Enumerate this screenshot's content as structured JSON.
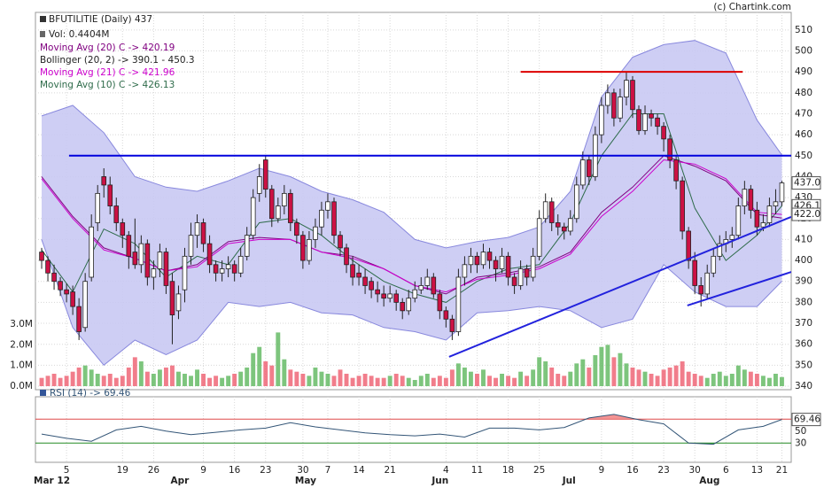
{
  "chart_data": {
    "type": "candlestick",
    "title": "BFUTILITIE (Daily) 437",
    "source": "(c) Chartink.com",
    "xlim": [
      -1,
      120.5
    ],
    "ylim": [
      340,
      518.4
    ],
    "yticks": [
      340,
      350,
      360,
      370,
      380,
      390,
      400,
      410,
      420,
      430,
      440,
      450,
      460,
      470,
      480,
      490,
      500,
      510
    ],
    "grid": true,
    "xticks": [
      {
        "value": 4,
        "label": "5"
      },
      {
        "value": 13,
        "label": "19"
      },
      {
        "value": 18,
        "label": "26"
      },
      {
        "value": 26,
        "label": "9"
      },
      {
        "value": 31,
        "label": "16"
      },
      {
        "value": 36,
        "label": "23"
      },
      {
        "value": 42,
        "label": "30"
      },
      {
        "value": 46,
        "label": "7"
      },
      {
        "value": 51,
        "label": "14"
      },
      {
        "value": 56,
        "label": "21"
      },
      {
        "value": 65,
        "label": "4"
      },
      {
        "value": 70,
        "label": "11"
      },
      {
        "value": 75,
        "label": "18"
      },
      {
        "value": 80,
        "label": "25"
      },
      {
        "value": 90,
        "label": "9"
      },
      {
        "value": 95,
        "label": "16"
      },
      {
        "value": 100,
        "label": "23"
      },
      {
        "value": 105,
        "label": "30"
      },
      {
        "value": 110,
        "label": "6"
      },
      {
        "value": 115,
        "label": "13"
      },
      {
        "value": 119,
        "label": "21"
      }
    ],
    "month_labels": [
      {
        "value": 0,
        "label": "Mar 12"
      },
      {
        "value": 22,
        "label": "Apr"
      },
      {
        "value": 42,
        "label": "May"
      },
      {
        "value": 64,
        "label": "Jun"
      },
      {
        "value": 85,
        "label": "Jul"
      },
      {
        "value": 107,
        "label": "Aug"
      }
    ],
    "up_color": "#ffffff",
    "down_color": "#cc1144",
    "ohlc": [
      [
        404,
        406,
        396,
        400
      ],
      [
        400,
        402,
        390,
        394
      ],
      [
        394,
        398,
        386,
        390
      ],
      [
        390,
        392,
        383,
        386
      ],
      [
        386,
        389,
        380,
        384
      ],
      [
        385,
        388,
        374,
        378
      ],
      [
        378,
        382,
        362,
        366
      ],
      [
        368,
        394,
        366,
        390
      ],
      [
        392,
        422,
        390,
        416
      ],
      [
        418,
        436,
        414,
        432
      ],
      [
        440,
        444,
        430,
        436
      ],
      [
        436,
        440,
        422,
        426
      ],
      [
        426,
        430,
        414,
        418
      ],
      [
        418,
        420,
        406,
        412
      ],
      [
        412,
        414,
        396,
        402
      ],
      [
        404,
        420,
        396,
        398
      ],
      [
        398,
        412,
        394,
        408
      ],
      [
        408,
        410,
        388,
        392
      ],
      [
        392,
        400,
        386,
        396
      ],
      [
        396,
        408,
        392,
        404
      ],
      [
        404,
        406,
        384,
        388
      ],
      [
        390,
        394,
        360,
        374
      ],
      [
        376,
        388,
        372,
        384
      ],
      [
        386,
        406,
        380,
        402
      ],
      [
        402,
        418,
        398,
        412
      ],
      [
        412,
        422,
        406,
        418
      ],
      [
        418,
        420,
        404,
        408
      ],
      [
        408,
        412,
        394,
        398
      ],
      [
        398,
        400,
        390,
        394
      ],
      [
        394,
        400,
        390,
        396
      ],
      [
        396,
        402,
        392,
        398
      ],
      [
        398,
        400,
        390,
        394
      ],
      [
        394,
        406,
        392,
        402
      ],
      [
        402,
        416,
        400,
        412
      ],
      [
        412,
        434,
        410,
        430
      ],
      [
        432,
        446,
        428,
        440
      ],
      [
        448,
        450,
        430,
        434
      ],
      [
        434,
        436,
        416,
        420
      ],
      [
        420,
        430,
        418,
        426
      ],
      [
        426,
        436,
        422,
        432
      ],
      [
        432,
        434,
        414,
        418
      ],
      [
        418,
        420,
        408,
        412
      ],
      [
        412,
        414,
        396,
        400
      ],
      [
        400,
        414,
        398,
        410
      ],
      [
        410,
        420,
        406,
        416
      ],
      [
        416,
        428,
        412,
        424
      ],
      [
        424,
        432,
        420,
        428
      ],
      [
        428,
        430,
        408,
        412
      ],
      [
        412,
        414,
        402,
        406
      ],
      [
        406,
        408,
        394,
        398
      ],
      [
        398,
        402,
        388,
        392
      ],
      [
        394,
        398,
        388,
        392
      ],
      [
        392,
        396,
        384,
        388
      ],
      [
        390,
        392,
        382,
        386
      ],
      [
        386,
        390,
        380,
        384
      ],
      [
        384,
        388,
        378,
        382
      ],
      [
        382,
        388,
        380,
        384
      ],
      [
        384,
        386,
        376,
        380
      ],
      [
        380,
        382,
        372,
        376
      ],
      [
        376,
        386,
        374,
        382
      ],
      [
        382,
        390,
        380,
        386
      ],
      [
        386,
        392,
        384,
        388
      ],
      [
        388,
        396,
        386,
        392
      ],
      [
        392,
        394,
        382,
        384
      ],
      [
        384,
        386,
        372,
        376
      ],
      [
        376,
        378,
        368,
        372
      ],
      [
        372,
        374,
        362,
        366
      ],
      [
        366,
        396,
        364,
        392
      ],
      [
        392,
        402,
        388,
        398
      ],
      [
        398,
        406,
        394,
        402
      ],
      [
        402,
        404,
        394,
        398
      ],
      [
        398,
        408,
        396,
        404
      ],
      [
        404,
        406,
        396,
        400
      ],
      [
        400,
        402,
        390,
        396
      ],
      [
        396,
        406,
        394,
        402
      ],
      [
        402,
        404,
        388,
        392
      ],
      [
        392,
        394,
        384,
        388
      ],
      [
        388,
        400,
        386,
        396
      ],
      [
        396,
        398,
        388,
        392
      ],
      [
        392,
        406,
        390,
        402
      ],
      [
        402,
        424,
        400,
        420
      ],
      [
        420,
        432,
        418,
        428
      ],
      [
        428,
        430,
        414,
        418
      ],
      [
        418,
        422,
        412,
        416
      ],
      [
        416,
        418,
        410,
        414
      ],
      [
        414,
        424,
        412,
        420
      ],
      [
        420,
        440,
        418,
        436
      ],
      [
        436,
        452,
        434,
        448
      ],
      [
        448,
        450,
        436,
        440
      ],
      [
        440,
        464,
        438,
        460
      ],
      [
        460,
        478,
        456,
        474
      ],
      [
        474,
        484,
        470,
        480
      ],
      [
        480,
        482,
        464,
        468
      ],
      [
        468,
        482,
        466,
        478
      ],
      [
        478,
        490,
        474,
        486
      ],
      [
        486,
        488,
        468,
        472
      ],
      [
        472,
        474,
        460,
        462
      ],
      [
        462,
        474,
        460,
        470
      ],
      [
        470,
        472,
        464,
        468
      ],
      [
        468,
        470,
        460,
        464
      ],
      [
        464,
        466,
        452,
        458
      ],
      [
        458,
        460,
        444,
        448
      ],
      [
        448,
        450,
        434,
        438
      ],
      [
        438,
        440,
        410,
        414
      ],
      [
        414,
        416,
        396,
        400
      ],
      [
        400,
        404,
        384,
        388
      ],
      [
        388,
        392,
        378,
        384
      ],
      [
        384,
        398,
        382,
        394
      ],
      [
        394,
        406,
        392,
        402
      ],
      [
        402,
        412,
        400,
        408
      ],
      [
        408,
        414,
        404,
        410
      ],
      [
        410,
        416,
        406,
        412
      ],
      [
        412,
        430,
        410,
        426
      ],
      [
        426,
        438,
        422,
        434
      ],
      [
        434,
        436,
        420,
        424
      ],
      [
        424,
        428,
        412,
        416
      ],
      [
        416,
        422,
        414,
        418
      ],
      [
        418,
        430,
        416,
        426
      ],
      [
        426,
        434,
        422,
        428
      ],
      [
        428,
        438,
        426,
        437
      ]
    ],
    "volume": {
      "name": "Vol: 0.4404M",
      "up_color": "#66bb66",
      "down_color": "#ee6677",
      "ylim": [
        0,
        18.1
      ],
      "yticks": [
        {
          "value": 0,
          "label": "0.0M"
        },
        {
          "value": 1,
          "label": "1.0M"
        },
        {
          "value": 2,
          "label": "2.0M"
        },
        {
          "value": 3,
          "label": "3.0M"
        }
      ],
      "values": [
        0.4,
        0.5,
        0.6,
        0.4,
        0.5,
        0.7,
        0.9,
        1.0,
        0.8,
        0.6,
        0.5,
        0.6,
        0.4,
        0.5,
        0.9,
        1.4,
        1.2,
        0.7,
        0.6,
        0.8,
        0.9,
        1.0,
        0.7,
        0.6,
        0.5,
        0.8,
        0.6,
        0.4,
        0.5,
        0.4,
        0.5,
        0.6,
        0.7,
        0.9,
        1.6,
        1.9,
        1.2,
        1.0,
        2.6,
        1.3,
        0.8,
        0.7,
        0.6,
        0.5,
        0.9,
        0.7,
        0.6,
        0.5,
        0.8,
        0.6,
        0.4,
        0.5,
        0.6,
        0.5,
        0.4,
        0.4,
        0.5,
        0.6,
        0.5,
        0.4,
        0.3,
        0.5,
        0.6,
        0.4,
        0.5,
        0.4,
        0.8,
        1.1,
        0.9,
        0.7,
        0.6,
        0.8,
        0.5,
        0.4,
        0.6,
        0.5,
        0.4,
        0.7,
        0.5,
        0.8,
        1.4,
        1.2,
        0.9,
        0.6,
        0.5,
        0.7,
        1.1,
        1.3,
        0.9,
        1.5,
        1.9,
        2.0,
        1.4,
        1.6,
        1.1,
        0.9,
        0.8,
        0.7,
        0.6,
        0.5,
        0.8,
        0.9,
        1.0,
        1.2,
        0.7,
        0.6,
        0.5,
        0.4,
        0.6,
        0.7,
        0.5,
        0.6,
        1.0,
        0.8,
        0.7,
        0.6,
        0.5,
        0.4,
        0.6,
        0.4404
      ]
    },
    "line_x": [
      0,
      5,
      10,
      15,
      20,
      25,
      30,
      35,
      40,
      45,
      50,
      55,
      60,
      65,
      70,
      75,
      80,
      85,
      90,
      95,
      100,
      105,
      110,
      115,
      119
    ],
    "ma20": {
      "name": "Moving Avg (20) C -> 420.19",
      "color": "#800080",
      "values": [
        440,
        421,
        406,
        401,
        395,
        398,
        409,
        411,
        410,
        404,
        402,
        396,
        388,
        384,
        392,
        394,
        397,
        404,
        423,
        435,
        450,
        445,
        438,
        422,
        420.19
      ]
    },
    "bollinger": {
      "name": "Bollinger (20, 2) -> 390.1 - 450.3",
      "color": "#8888dd",
      "fill": "#c9c9f3",
      "upper": [
        469,
        474,
        461,
        440,
        435,
        433,
        438,
        444,
        440,
        433,
        429,
        423,
        410,
        406,
        409,
        411,
        416,
        433,
        478,
        497,
        503,
        505,
        499,
        467,
        450.3
      ],
      "lower": [
        410,
        368,
        350,
        362,
        355,
        362,
        380,
        378,
        380,
        375,
        374,
        368,
        366,
        362,
        375,
        376,
        378,
        376,
        368,
        372,
        398,
        385,
        378,
        378,
        390.1
      ]
    },
    "ma21": {
      "name": "Moving Avg (21) C -> 421.96",
      "color": "#cc00cc",
      "values": [
        439,
        420,
        405,
        401,
        395,
        397,
        408,
        410,
        410,
        404,
        401,
        396,
        388,
        385,
        391,
        393,
        396,
        403,
        421,
        433,
        448,
        446,
        439,
        423,
        421.96
      ]
    },
    "ma10": {
      "name": "Moving Avg (10) C -> 426.13",
      "color": "#2e6b4a",
      "values": [
        405,
        385,
        415,
        408,
        392,
        402,
        398,
        418,
        420,
        412,
        400,
        390,
        384,
        380,
        390,
        396,
        398,
        418,
        450,
        470,
        470,
        425,
        400,
        412,
        426.13
      ]
    },
    "price_markers": [
      {
        "value": 437,
        "label": "437.0"
      },
      426.1,
      {
        "value": 422,
        "label": "422.0"
      }
    ],
    "trendlines": [
      {
        "x": [
          4.4,
          120.5
        ],
        "y": [
          450,
          450
        ],
        "color": "#0000dd"
      },
      {
        "x": [
          77,
          112.7
        ],
        "y": [
          490,
          490
        ],
        "color": "#dd0000"
      },
      {
        "x": [
          65.5,
          120.5
        ],
        "y": [
          354,
          420.8
        ],
        "color": "#2222dd"
      },
      {
        "x": [
          103.8,
          120.5
        ],
        "y": [
          378.5,
          394.5
        ],
        "color": "#2222dd"
      }
    ],
    "rsi": {
      "name": "RSI (14) -> 69.46",
      "color": "#335577",
      "ylim": [
        0,
        100
      ],
      "yticks": [
        30,
        50
      ],
      "levels": [
        70,
        30
      ],
      "level_colors": [
        "#dd4444",
        "#228822"
      ],
      "fill_colors": [
        "#f08080",
        "#33aa33"
      ],
      "marker": 69.46,
      "x": [
        0,
        4,
        8,
        12,
        16,
        20,
        24,
        28,
        32,
        36,
        40,
        44,
        48,
        52,
        56,
        60,
        64,
        68,
        72,
        76,
        80,
        84,
        88,
        92,
        96,
        100,
        104,
        108,
        112,
        116,
        119
      ],
      "values": [
        45,
        38,
        33,
        52,
        58,
        50,
        44,
        48,
        52,
        55,
        64,
        57,
        52,
        47,
        44,
        42,
        45,
        40,
        55,
        55,
        52,
        56,
        72,
        78,
        69,
        62,
        30,
        28,
        52,
        58,
        69.46
      ]
    }
  }
}
